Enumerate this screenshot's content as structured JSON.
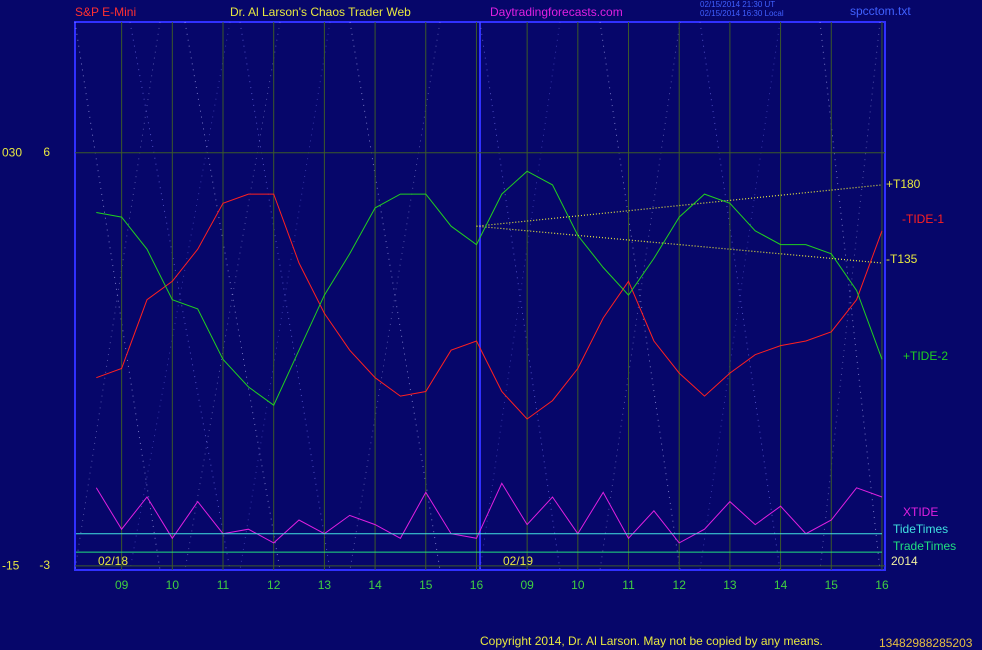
{
  "chart_data": {
    "type": "line",
    "instrument": "S&P E-Mini",
    "title": "Dr. Al Larson's Chaos Trader Web",
    "website": "Daytradingforecasts.com",
    "timestamps": [
      "02/15/2014 21:30 UT",
      "02/15/2014 16:30 Local"
    ],
    "file": "spcctom.txt",
    "dates": [
      "02/18",
      "02/19"
    ],
    "year": "2014",
    "copyright": "Copyright 2014, Dr. Al Larson. May not be copied by any means.",
    "code": "13482988285203",
    "xlim": [
      8.08,
      24.06
    ],
    "xticks": [
      {
        "value": 9,
        "label": "09"
      },
      10,
      11,
      12,
      13,
      14,
      15,
      16,
      {
        "value": 17,
        "label": "09"
      },
      {
        "value": 18,
        "label": "10"
      },
      {
        "value": 19,
        "label": "11"
      },
      {
        "value": 20,
        "label": "12"
      },
      {
        "value": 21,
        "label": "13"
      },
      {
        "value": 22,
        "label": "14"
      },
      {
        "value": 23,
        "label": "15"
      },
      {
        "value": 24,
        "label": "16"
      }
    ],
    "ylim": [
      -3.09,
      8.85
    ],
    "yticks": [
      -3,
      6
    ],
    "y2lim": [
      -15.4,
      44.3
    ],
    "y2ticks": [
      -15,
      {
        "value": 30,
        "label": "030"
      }
    ],
    "grid": true,
    "x": [
      8.5,
      9,
      9.5,
      10,
      10.5,
      11,
      11.5,
      12,
      12.5,
      13,
      13.5,
      14,
      14.5,
      15,
      15.5,
      16,
      16.5,
      17,
      17.5,
      18,
      18.5,
      19,
      19.5,
      20,
      20.5,
      21,
      21.5,
      22,
      22.5,
      23,
      23.5,
      24
    ],
    "series": [
      {
        "name": "+T180",
        "color": "#e8e840",
        "dash": true,
        "x": [
          16,
          24
        ],
        "values": [
          4.4,
          5.3
        ]
      },
      {
        "name": "-TIDE-1",
        "color": "#ff2020",
        "values": [
          1.1,
          1.3,
          2.8,
          3.2,
          3.9,
          4.9,
          5.1,
          5.1,
          3.6,
          2.5,
          1.7,
          1.1,
          0.7,
          0.8,
          1.7,
          1.9,
          0.8,
          0.2,
          0.6,
          1.3,
          2.4,
          3.2,
          1.9,
          1.2,
          0.7,
          1.2,
          1.6,
          1.8,
          1.9,
          2.1,
          2.8,
          4.3
        ]
      },
      {
        "name": "-T135",
        "color": "#e8e840",
        "dash": true,
        "x": [
          16,
          24
        ],
        "values": [
          4.4,
          3.6
        ]
      },
      {
        "name": "+TIDE-2",
        "color": "#20d020",
        "values": [
          4.7,
          4.6,
          3.9,
          2.8,
          2.6,
          1.5,
          0.9,
          0.5,
          1.7,
          2.9,
          3.8,
          4.8,
          5.1,
          5.1,
          4.4,
          4.0,
          5.1,
          5.6,
          5.3,
          4.2,
          3.5,
          2.9,
          3.7,
          4.6,
          5.1,
          4.9,
          4.3,
          4.0,
          4.0,
          3.8,
          3.0,
          1.5
        ]
      },
      {
        "name": "XTIDE",
        "color": "#e020e0",
        "values": [
          -1.3,
          -2.2,
          -1.5,
          -2.4,
          -1.6,
          -2.3,
          -2.2,
          -2.5,
          -2.0,
          -2.3,
          -1.9,
          -2.1,
          -2.4,
          -1.4,
          -2.3,
          -2.4,
          -1.2,
          -2.1,
          -1.5,
          -2.3,
          -1.4,
          -2.4,
          -1.8,
          -2.5,
          -2.2,
          -1.6,
          -2.1,
          -1.7,
          -2.3,
          -2.0,
          -1.3,
          -1.5
        ]
      },
      {
        "name": "TideTimes",
        "color": "#40e0e0",
        "x": [
          8.1,
          24
        ],
        "values": [
          -2.3,
          -2.3
        ]
      },
      {
        "name": "TradeTimes",
        "color": "#20e080",
        "x": [
          8.1,
          24
        ],
        "values": [
          -2.7,
          -2.7
        ]
      }
    ]
  }
}
